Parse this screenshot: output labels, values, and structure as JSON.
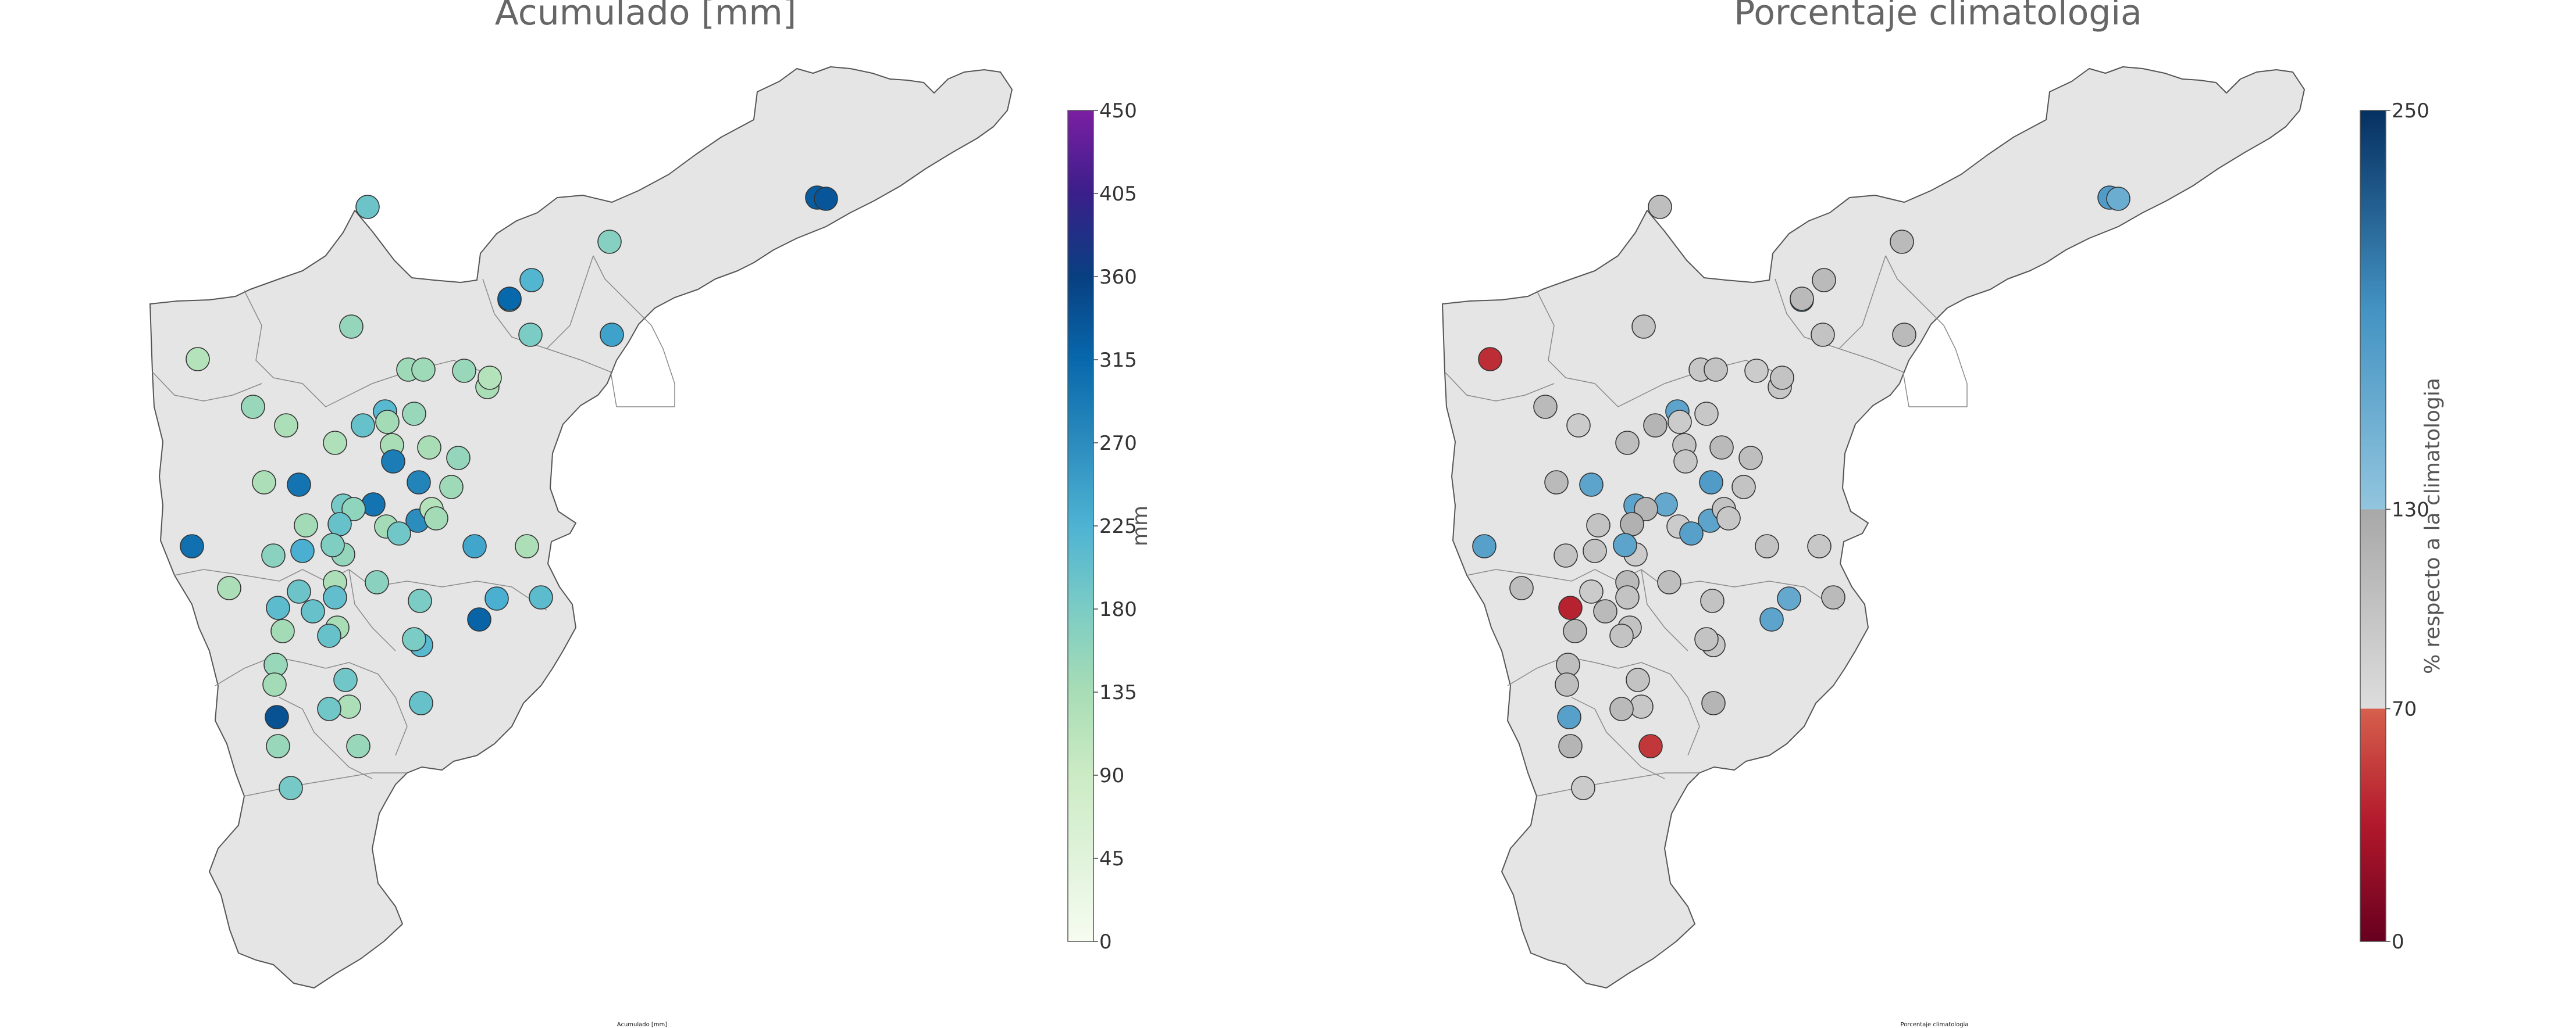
{
  "maps": [
    {
      "title": "Acumulado [mm]",
      "footer": "Acumulado [mm]",
      "colorbar": {
        "label": "mm",
        "min": 0,
        "max": 450,
        "ticks": [
          "450",
          "405",
          "360",
          "315",
          "270",
          "225",
          "180",
          "135",
          "90",
          "45",
          "0"
        ],
        "gradient": [
          [
            0,
            "#f7fcf0"
          ],
          [
            0.1,
            "#e0f3db"
          ],
          [
            0.2,
            "#ccebc5"
          ],
          [
            0.3,
            "#a8ddb5"
          ],
          [
            0.4,
            "#7bccc4"
          ],
          [
            0.5,
            "#4eb3d3"
          ],
          [
            0.6,
            "#2b8cbe"
          ],
          [
            0.7,
            "#0868ac"
          ],
          [
            0.8,
            "#084081"
          ],
          [
            0.9,
            "#3a1f8a"
          ],
          [
            1,
            "#7b1fa2"
          ]
        ]
      },
      "stations": [
        {
          "lat": 20,
          "lon": 34,
          "value": 180
        }
      ]
    },
    {
      "title": "Porcentaje climatologia",
      "footer": "Porcentaje climatologia",
      "colorbar": {
        "label": "% respecto a la climatologia",
        "min": 0,
        "max": 250,
        "ticks": [
          "250",
          "130",
          "70",
          "0"
        ],
        "tick_values": [
          250,
          130,
          70,
          0
        ]
      }
    }
  ],
  "acumulado_values": [
    328,
    335,
    195,
    170,
    205,
    120,
    155,
    315,
    220,
    180,
    145,
    145,
    245,
    150,
    135,
    120,
    150,
    130,
    215,
    150,
    140,
    200,
    125,
    300,
    130,
    185,
    280,
    135,
    290,
    155,
    145,
    135,
    300,
    270,
    160,
    140,
    140,
    120,
    200,
    230,
    190,
    140,
    155,
    165,
    175,
    130,
    195,
    240,
    130,
    165,
    305,
    205,
    200,
    210,
    135,
    130,
    180,
    215,
    230,
    210,
    140,
    200,
    320,
    180,
    150,
    140,
    190,
    130,
    190,
    200,
    340,
    150,
    150,
    185
  ],
  "porcentaje_values": [
    180,
    160,
    105,
    110,
    200,
    45,
    100,
    110,
    110,
    100,
    95,
    100,
    110,
    90,
    95,
    100,
    110,
    90,
    170,
    95,
    90,
    115,
    105,
    170,
    110,
    170,
    180,
    100,
    95,
    105,
    100,
    110,
    165,
    170,
    115,
    100,
    90,
    100,
    120,
    100,
    175,
    95,
    90,
    100,
    170,
    110,
    90,
    100,
    95,
    105,
    175,
    100,
    110,
    40,
    100,
    105,
    100,
    95,
    165,
    110,
    110,
    100,
    170,
    100,
    105,
    105,
    100,
    95,
    110,
    115,
    175,
    50,
    115,
    90
  ],
  "colors": {
    "region_fill": "#e5e5e5",
    "region_stroke": "#555555",
    "pct_low": "#67001f",
    "pct_mid_low": "#d6604d",
    "pct_neutral_low": "#dddddd",
    "pct_neutral_high": "#a8a8a8",
    "pct_high_low": "#92c5de",
    "pct_high": "#053061"
  }
}
